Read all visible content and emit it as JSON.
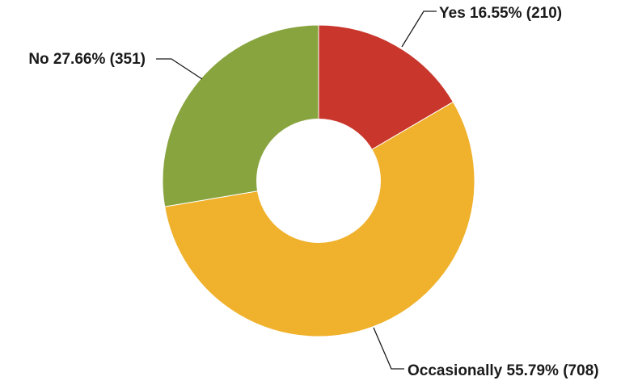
{
  "chart_data": {
    "type": "pie",
    "donut": true,
    "slices": [
      {
        "name": "Yes",
        "percent_label": "16.55%",
        "count_label": "(210)",
        "percent": 16.55,
        "count": 210,
        "color": "#c8362c"
      },
      {
        "name": "Occasionally",
        "percent_label": "55.79%",
        "count_label": "(708)",
        "percent": 55.79,
        "count": 708,
        "color": "#f0b12c"
      },
      {
        "name": "No",
        "percent_label": "27.66%",
        "count_label": "(351)",
        "percent": 27.66,
        "count": 351,
        "color": "#88a43f"
      }
    ],
    "start_angle": "12 o'clock",
    "direction": "clockwise",
    "legend": "none"
  }
}
